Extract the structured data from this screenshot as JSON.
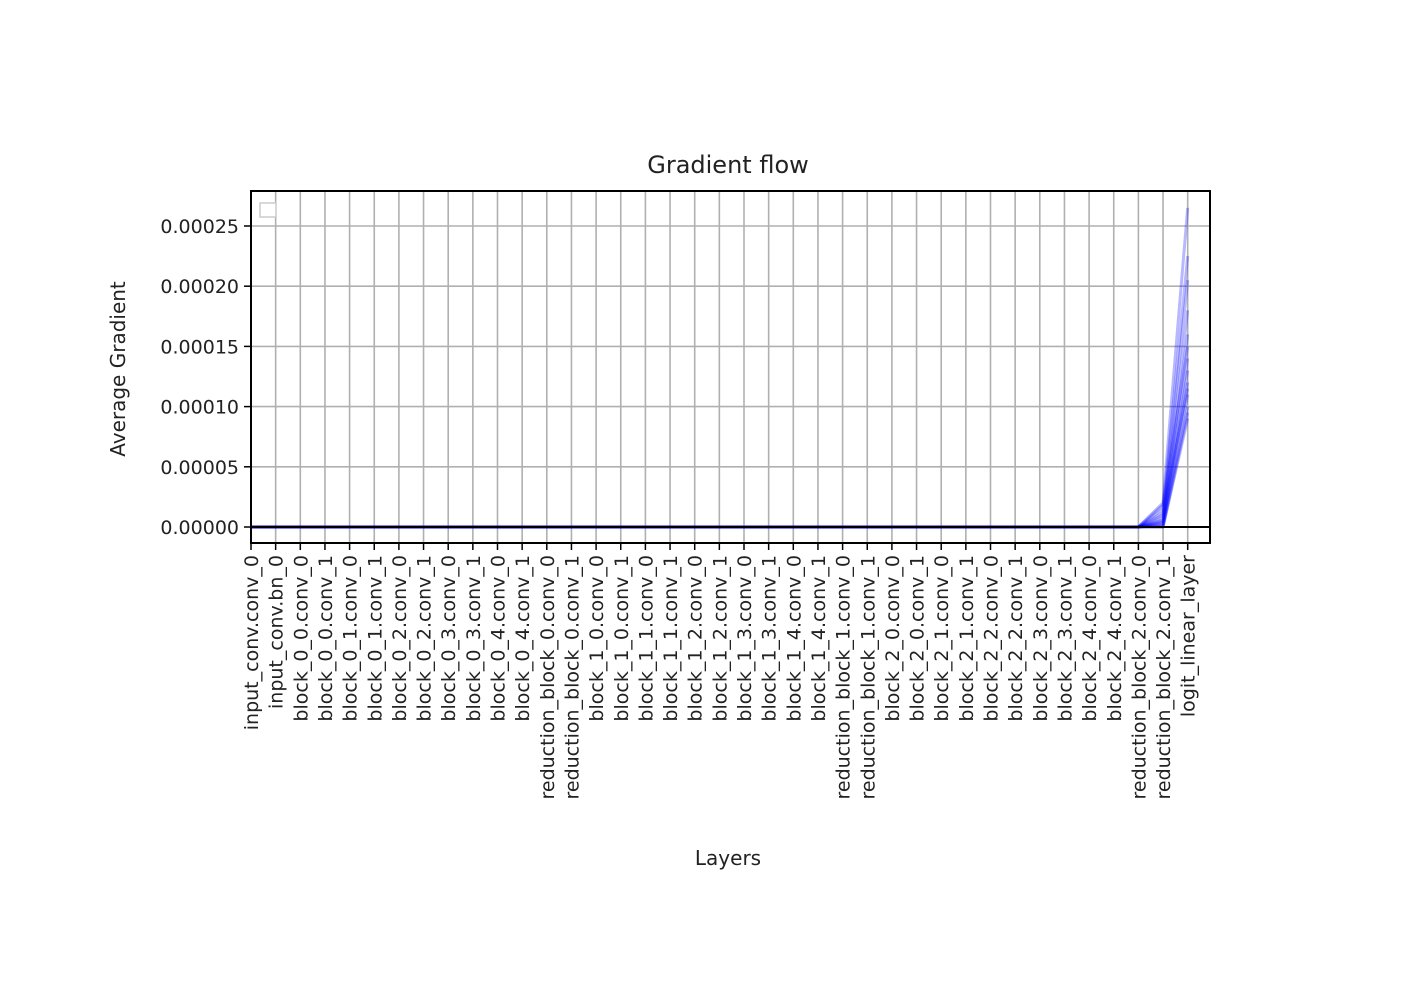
{
  "chart_data": {
    "type": "line",
    "title": "Gradient flow",
    "xlabel": "Layers",
    "ylabel": "Average Gradient",
    "ylim": [
      -1.3e-05,
      0.000278
    ],
    "grid": true,
    "legend": "top-left (empty)",
    "yticks": [
      "0.00000",
      "0.00005",
      "0.00010",
      "0.00015",
      "0.00020",
      "0.00025"
    ],
    "ytick_values": [
      0,
      5e-05,
      0.0001,
      0.00015,
      0.0002,
      0.00025
    ],
    "categories": [
      "input_conv.conv_0",
      "input_conv.bn_0",
      "block_0_0.conv_0",
      "block_0_0.conv_1",
      "block_0_1.conv_0",
      "block_0_1.conv_1",
      "block_0_2.conv_0",
      "block_0_2.conv_1",
      "block_0_3.conv_0",
      "block_0_3.conv_1",
      "block_0_4.conv_0",
      "block_0_4.conv_1",
      "reduction_block_0.conv_0",
      "reduction_block_0.conv_1",
      "block_1_0.conv_0",
      "block_1_0.conv_1",
      "block_1_1.conv_0",
      "block_1_1.conv_1",
      "block_1_2.conv_0",
      "block_1_2.conv_1",
      "block_1_3.conv_0",
      "block_1_3.conv_1",
      "block_1_4.conv_0",
      "block_1_4.conv_1",
      "reduction_block_1.conv_0",
      "reduction_block_1.conv_1",
      "block_2_0.conv_0",
      "block_2_0.conv_1",
      "block_2_1.conv_0",
      "block_2_1.conv_1",
      "block_2_2.conv_0",
      "block_2_2.conv_1",
      "block_2_3.conv_0",
      "block_2_3.conv_1",
      "block_2_4.conv_0",
      "block_2_4.conv_1",
      "reduction_block_2.conv_0",
      "reduction_block_2.conv_1",
      "logit_linear_layer"
    ],
    "series_tail": [
      [
        0,
        2e-05,
        0.000265
      ],
      [
        0,
        1.5e-05,
        0.000225
      ],
      [
        0,
        1e-05,
        0.000205
      ],
      [
        0,
        8e-06,
        0.00018
      ],
      [
        0,
        6e-06,
        0.00016
      ],
      [
        0,
        5e-06,
        0.00014
      ],
      [
        0,
        4e-06,
        0.00013
      ],
      [
        0,
        3e-06,
        0.00012
      ],
      [
        0,
        2e-06,
        0.00011
      ],
      [
        0,
        1e-06,
        0.0001
      ],
      [
        0,
        0,
        9.5e-05
      ],
      [
        0,
        0,
        9e-05
      ],
      [
        0,
        1.2e-05,
        0.000115
      ],
      [
        0,
        1.8e-05,
        0.00015
      ]
    ],
    "series_color": "#0000ff"
  }
}
